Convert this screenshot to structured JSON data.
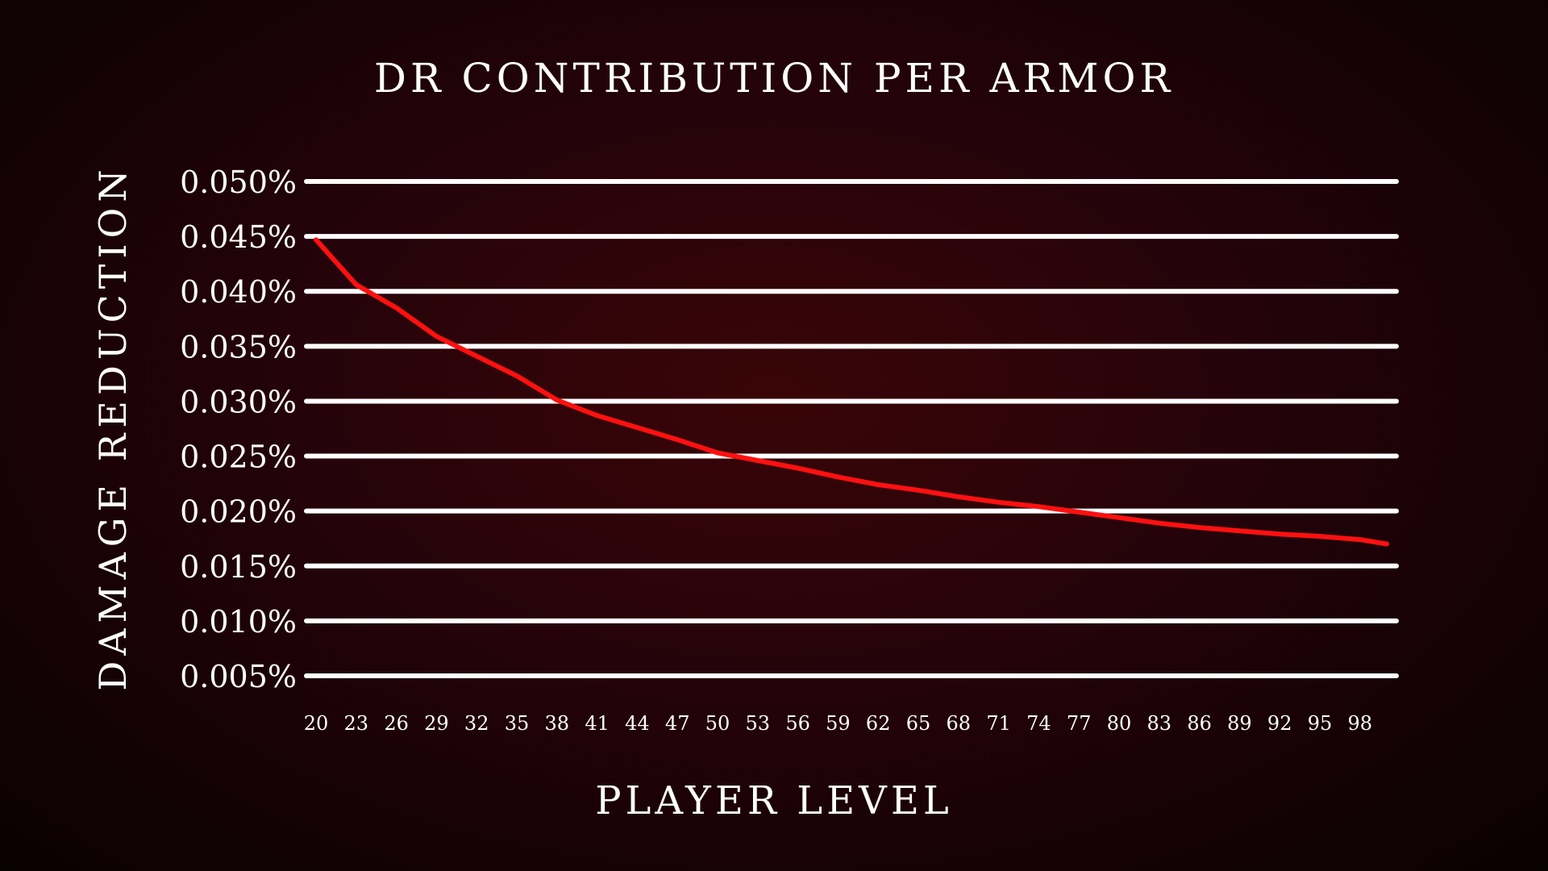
{
  "chart_data": {
    "type": "line",
    "title": "DR Contribution per Armor",
    "xlabel": "Player Level",
    "ylabel": "Damage Reduction",
    "xlim": [
      20,
      100
    ],
    "ylim": [
      0.005,
      0.05
    ],
    "x_ticks": [
      20,
      23,
      26,
      29,
      32,
      35,
      38,
      41,
      44,
      47,
      50,
      53,
      56,
      59,
      62,
      65,
      68,
      71,
      74,
      77,
      80,
      83,
      86,
      89,
      92,
      95,
      98
    ],
    "y_ticks": [
      "0.050%",
      "0.045%",
      "0.040%",
      "0.035%",
      "0.030%",
      "0.025%",
      "0.020%",
      "0.015%",
      "0.010%",
      "0.005%"
    ],
    "y_tick_values": [
      0.05,
      0.045,
      0.04,
      0.035,
      0.03,
      0.025,
      0.02,
      0.015,
      0.01,
      0.005
    ],
    "grid": true,
    "line_color": "#ff1010",
    "grid_color": "#ffffff",
    "series": [
      {
        "x": [
          20,
          23,
          26,
          29,
          32,
          35,
          38,
          41,
          44,
          47,
          50,
          53,
          56,
          59,
          62,
          65,
          68,
          71,
          74,
          77,
          80,
          83,
          86,
          89,
          92,
          95,
          98,
          100
        ],
        "y": [
          0.0447,
          0.0406,
          0.0385,
          0.0359,
          0.0341,
          0.0323,
          0.0301,
          0.0287,
          0.0276,
          0.0265,
          0.0253,
          0.0246,
          0.0239,
          0.0231,
          0.0224,
          0.0219,
          0.0213,
          0.0208,
          0.0204,
          0.0199,
          0.0194,
          0.0189,
          0.0185,
          0.0182,
          0.0179,
          0.0177,
          0.0174,
          0.017
        ]
      }
    ]
  }
}
